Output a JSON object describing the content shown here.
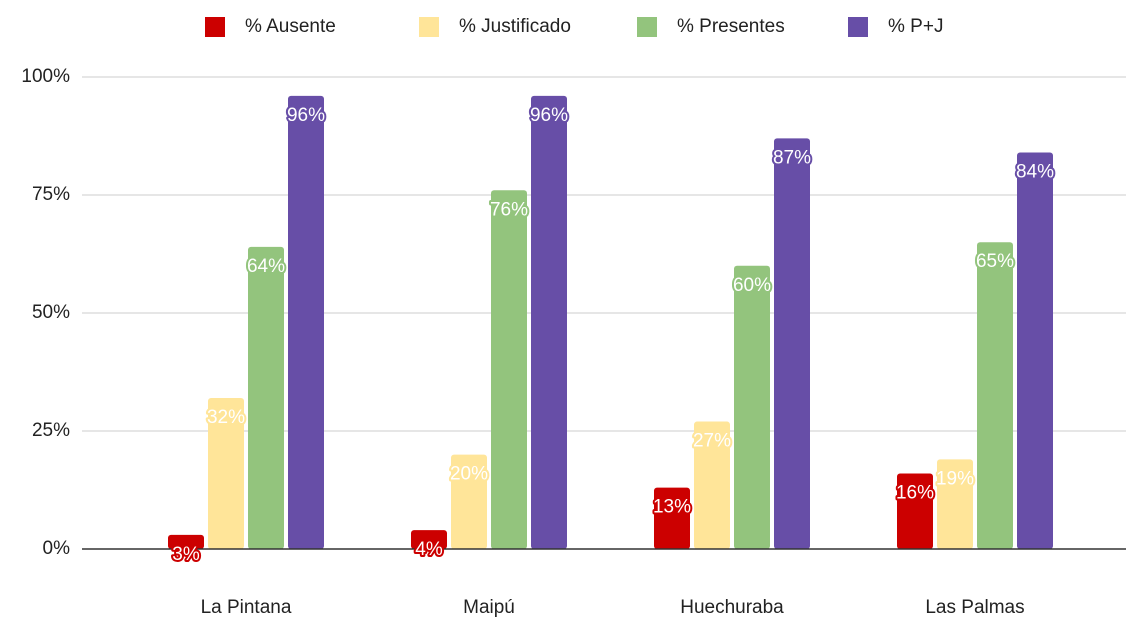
{
  "chart_data": {
    "type": "bar",
    "categories": [
      "La Pintana",
      "Maipú",
      "Huechuraba",
      "Las Palmas"
    ],
    "series": [
      {
        "name": "% Ausente",
        "color": "#cc0000",
        "values": [
          3,
          4,
          13,
          16
        ],
        "value_labels": [
          "3%",
          "4%",
          "13%",
          "16%"
        ]
      },
      {
        "name": "% Justificado",
        "color": "#ffe599",
        "values": [
          32,
          20,
          27,
          19
        ],
        "value_labels": [
          "32%",
          "20%",
          "27%",
          "19%"
        ]
      },
      {
        "name": "% Presentes",
        "color": "#93c47d",
        "values": [
          64,
          76,
          60,
          65
        ],
        "value_labels": [
          "64%",
          "76%",
          "60%",
          "65%"
        ]
      },
      {
        "name": "% P+J",
        "color": "#674ea7",
        "values": [
          96,
          96,
          87,
          84
        ],
        "value_labels": [
          "96%",
          "96%",
          "87%",
          "84%"
        ]
      }
    ],
    "ylim": [
      0,
      100
    ],
    "yticks": [
      {
        "value": 0,
        "label": "0%"
      },
      {
        "value": 25,
        "label": "25%"
      },
      {
        "value": 50,
        "label": "50%"
      },
      {
        "value": 75,
        "label": "75%"
      },
      {
        "value": 100,
        "label": "100%"
      }
    ],
    "grid": true,
    "legend": "top"
  }
}
